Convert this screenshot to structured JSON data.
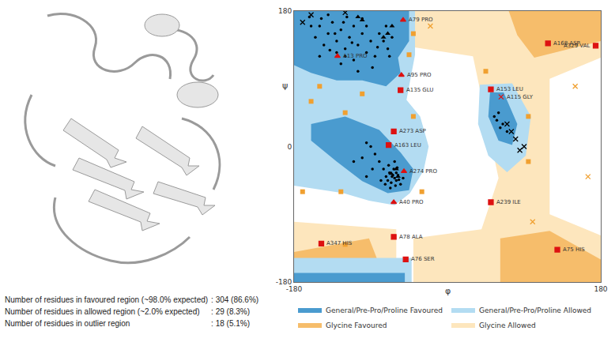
{
  "chart_data": {
    "type": "scatter",
    "x_label": "φ",
    "y_label": "ψ",
    "xlim": [
      -180,
      180
    ],
    "ylim": [
      -180,
      180
    ],
    "xticks": [
      -180,
      180
    ],
    "yticks": [
      -180,
      0,
      180
    ],
    "grid": false,
    "legend": "bottom",
    "regions": [
      {
        "name": "General/Pre-Pro/Proline Favoured",
        "color": "#4a9bcf",
        "polygons": [
          [
            [
              -180,
              180
            ],
            [
              -45,
              180
            ],
            [
              -45,
              140
            ],
            [
              -58,
              118
            ],
            [
              -55,
              98
            ],
            [
              -72,
              80
            ],
            [
              -100,
              88
            ],
            [
              -130,
              88
            ],
            [
              -160,
              98
            ],
            [
              -180,
              108
            ]
          ],
          [
            [
              -180,
              -168
            ],
            [
              -50,
              -168
            ],
            [
              -50,
              -180
            ],
            [
              -180,
              -180
            ]
          ],
          [
            [
              -160,
              30
            ],
            [
              -120,
              40
            ],
            [
              -80,
              22
            ],
            [
              -55,
              -8
            ],
            [
              -40,
              -30
            ],
            [
              -45,
              -58
            ],
            [
              -70,
              -62
            ],
            [
              -100,
              -46
            ],
            [
              -130,
              -20
            ],
            [
              -160,
              8
            ]
          ],
          [
            [
              50,
              72
            ],
            [
              66,
              72
            ],
            [
              82,
              30
            ],
            [
              76,
              2
            ],
            [
              60,
              8
            ],
            [
              48,
              40
            ]
          ]
        ]
      },
      {
        "name": "General/Pre-Pro/Proline Allowed",
        "color": "#b3dcf2",
        "polygons": [
          [
            [
              -180,
              180
            ],
            [
              -38,
              180
            ],
            [
              -38,
              122
            ],
            [
              -48,
              62
            ],
            [
              -32,
              40
            ],
            [
              -22,
              0
            ],
            [
              -28,
              -32
            ],
            [
              -44,
              -62
            ],
            [
              -62,
              -78
            ],
            [
              -92,
              -72
            ],
            [
              -122,
              -62
            ],
            [
              -156,
              -56
            ],
            [
              -180,
              -52
            ]
          ],
          [
            [
              -180,
              -148
            ],
            [
              -42,
              -148
            ],
            [
              -42,
              -180
            ],
            [
              -180,
              -180
            ]
          ],
          [
            [
              38,
              82
            ],
            [
              76,
              84
            ],
            [
              98,
              40
            ],
            [
              92,
              -12
            ],
            [
              70,
              -34
            ],
            [
              48,
              -12
            ],
            [
              36,
              30
            ]
          ]
        ]
      },
      {
        "name": "Glycine Favoured",
        "color": "#f6bd6b",
        "polygons": [
          [
            [
              72,
              180
            ],
            [
              180,
              180
            ],
            [
              180,
              140
            ],
            [
              102,
              118
            ],
            [
              82,
              148
            ]
          ],
          [
            [
              62,
              -122
            ],
            [
              120,
              -112
            ],
            [
              180,
              -150
            ],
            [
              180,
              -180
            ],
            [
              62,
              -180
            ]
          ],
          [
            [
              -180,
              -140
            ],
            [
              -92,
              -122
            ],
            [
              -72,
              -180
            ],
            [
              -180,
              -180
            ]
          ]
        ]
      },
      {
        "name": "Glycine Allowed",
        "color": "#fde6bd",
        "polygons": [
          [
            [
              -40,
              180
            ],
            [
              180,
              180
            ],
            [
              180,
              118
            ],
            [
              120,
              90
            ],
            [
              120,
              -90
            ],
            [
              180,
              -118
            ],
            [
              180,
              -180
            ],
            [
              -40,
              -180
            ],
            [
              -40,
              -122
            ],
            [
              40,
              -110
            ],
            [
              60,
              -42
            ],
            [
              30,
              120
            ],
            [
              -40,
              132
            ]
          ],
          [
            [
              -180,
              -180
            ],
            [
              -60,
              -180
            ],
            [
              -60,
              -110
            ],
            [
              -180,
              -100
            ]
          ]
        ]
      }
    ],
    "series": [
      {
        "marker": "circle",
        "color": "#000000",
        "points": [
          [
            -150,
            160
          ],
          [
            -140,
            150
          ],
          [
            -130,
            140
          ],
          [
            -120,
            130
          ],
          [
            -125,
            155
          ],
          [
            -135,
            165
          ],
          [
            -115,
            145
          ],
          [
            -105,
            135
          ],
          [
            -95,
            125
          ],
          [
            -100,
            150
          ],
          [
            -110,
            160
          ],
          [
            -145,
            135
          ],
          [
            -155,
            145
          ],
          [
            -160,
            160
          ],
          [
            -120,
            120
          ],
          [
            -130,
            125
          ],
          [
            -90,
            140
          ],
          [
            -85,
            120
          ],
          [
            -80,
            150
          ],
          [
            -75,
            140
          ],
          [
            -70,
            130
          ],
          [
            -65,
            145
          ],
          [
            -140,
            175
          ],
          [
            -150,
            120
          ],
          [
            -125,
            110
          ],
          [
            -110,
            115
          ],
          [
            -100,
            170
          ],
          [
            -95,
            160
          ],
          [
            -118,
            172
          ],
          [
            -138,
            128
          ],
          [
            -162,
            172
          ],
          [
            -88,
            105
          ],
          [
            -72,
            160
          ],
          [
            -105,
            100
          ],
          [
            -132,
            150
          ],
          [
            -148,
            170
          ],
          [
            -112,
            138
          ],
          [
            -122,
            165
          ],
          [
            -82,
            132
          ],
          [
            -68,
            120
          ],
          [
            -65,
            -40
          ],
          [
            -62,
            -42
          ],
          [
            -60,
            -45
          ],
          [
            -58,
            -38
          ],
          [
            -68,
            -35
          ],
          [
            -70,
            -45
          ],
          [
            -63,
            -30
          ],
          [
            -55,
            -50
          ],
          [
            -60,
            -35
          ],
          [
            -66,
            -48
          ],
          [
            -72,
            -40
          ],
          [
            -57,
            -44
          ],
          [
            -64,
            -38
          ],
          [
            -61,
            -52
          ],
          [
            -75,
            -30
          ],
          [
            -80,
            -20
          ],
          [
            -85,
            -10
          ],
          [
            -90,
            0
          ],
          [
            -95,
            5
          ],
          [
            -100,
            -15
          ],
          [
            -78,
            -45
          ],
          [
            -52,
            -42
          ],
          [
            -69,
            -25
          ],
          [
            -59,
            -28
          ],
          [
            -67,
            -55
          ],
          [
            -73,
            -50
          ],
          [
            -62,
            -20
          ],
          [
            -88,
            -30
          ],
          [
            -95,
            -40
          ],
          [
            -110,
            -20
          ],
          [
            55,
            40
          ],
          [
            60,
            45
          ],
          [
            65,
            30
          ],
          [
            58,
            35
          ],
          [
            70,
            20
          ],
          [
            62,
            25
          ]
        ]
      },
      {
        "marker": "triangle",
        "color": "#000000",
        "points": [
          [
            -70,
            150
          ],
          [
            -65,
            160
          ],
          [
            -75,
            145
          ],
          [
            -60,
            -30
          ],
          [
            -58,
            -40
          ],
          [
            -105,
            172
          ],
          [
            -100,
            168
          ],
          [
            -66,
            -36
          ]
        ]
      },
      {
        "marker": "x",
        "color": "#000000",
        "points": [
          [
            80,
            10
          ],
          [
            85,
            -5
          ],
          [
            75,
            20
          ],
          [
            90,
            0
          ],
          [
            70,
            30
          ],
          [
            -160,
            175
          ],
          [
            -120,
            178
          ],
          [
            -170,
            165
          ]
        ]
      },
      {
        "marker": "square",
        "color": "#f0a030",
        "points": [
          [
            -125,
            -60
          ],
          [
            -160,
            60
          ],
          [
            -150,
            80
          ],
          [
            -45,
            122
          ],
          [
            -40,
            40
          ],
          [
            -30,
            -60
          ],
          [
            -120,
            45
          ],
          [
            95,
            40
          ],
          [
            95,
            -20
          ],
          [
            45,
            100
          ],
          [
            -120,
            -130
          ],
          [
            -40,
            150
          ],
          [
            -100,
            70
          ],
          [
            -170,
            -60
          ]
        ]
      },
      {
        "marker": "x",
        "color": "#f0a030",
        "points": [
          [
            150,
            80
          ],
          [
            165,
            -40
          ],
          [
            100,
            -100
          ],
          [
            -20,
            160
          ]
        ]
      }
    ],
    "outliers": {
      "color": "#dd1111",
      "points": [
        {
          "label": "A79 PRO",
          "marker": "triangle",
          "x": -52,
          "y": 168
        },
        {
          "label": "A13 PRO",
          "marker": "triangle",
          "x": -129,
          "y": 120
        },
        {
          "label": "A95 PRO",
          "marker": "triangle",
          "x": -54,
          "y": 95
        },
        {
          "label": "A135 GLU",
          "marker": "square",
          "x": -55,
          "y": 75
        },
        {
          "label": "A168 ASP",
          "marker": "square",
          "x": 118,
          "y": 137
        },
        {
          "label": "A329 VAL",
          "marker": "square",
          "x": 174,
          "y": 134
        },
        {
          "label": "A153 LEU",
          "marker": "square",
          "x": 51,
          "y": 76
        },
        {
          "label": "A115 GLY",
          "marker": "x",
          "x": 63,
          "y": 66
        },
        {
          "label": "A273 ASP",
          "marker": "square",
          "x": -63,
          "y": 20
        },
        {
          "label": "A163 LEU",
          "marker": "square",
          "x": -69,
          "y": 2
        },
        {
          "label": "A274 PRO",
          "marker": "triangle",
          "x": -51,
          "y": -33
        },
        {
          "label": "A40 PRO",
          "marker": "triangle",
          "x": -63,
          "y": -74
        },
        {
          "label": "A239 ILE",
          "marker": "square",
          "x": 51,
          "y": -74
        },
        {
          "label": "A78 ALA",
          "marker": "square",
          "x": -63,
          "y": -120
        },
        {
          "label": "A347 HIS",
          "marker": "square",
          "x": -148,
          "y": -129
        },
        {
          "label": "A76 SER",
          "marker": "square",
          "x": -49,
          "y": -150
        },
        {
          "label": "A75 HIS",
          "marker": "square",
          "x": 129,
          "y": -137
        }
      ]
    }
  },
  "stats": [
    {
      "label": "Number of residues in favoured region (~98.0% expected)",
      "value": ": 304 (86.6%)"
    },
    {
      "label": "Number of residues in allowed region (~2.0% expected)",
      "value": ": 29 (8.3%)"
    },
    {
      "label": "Number of residues in outlier region",
      "value": ": 18 (5.1%)"
    }
  ]
}
